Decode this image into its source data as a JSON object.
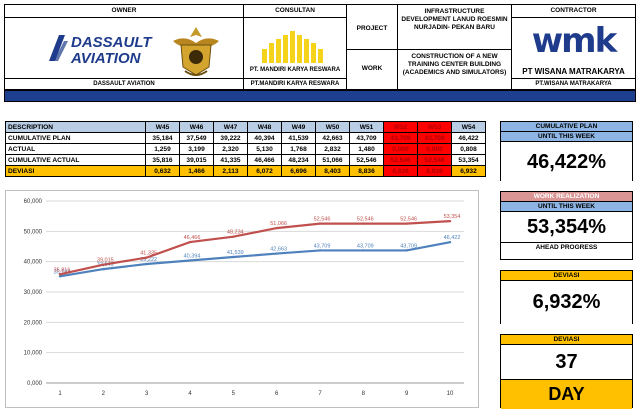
{
  "header": {
    "owner_label": "OWNER",
    "owner_name": "DASSAULT AVIATION",
    "owner_logo_line1": "DASSAULT",
    "owner_logo_line2": "AVIATION",
    "consultant_label": "CONSULTAN",
    "consultant_name": "PT. MANDIRI KARYA RESWARA",
    "consultant_name_footer": "PT.MANDIRI KARYA RESWARA",
    "project_label": "PROJECT",
    "project_value": "INFRASTRUCTURE DEVELOPMENT LANUD ROESMIN NURJADIN- PEKAN BARU",
    "work_label": "WORK",
    "work_value": "CONSTRUCTION OF A NEW TRAINING CENTER BUILDING (ACADEMICS AND SIMULATORS)",
    "contractor_label": "CONTRACTOR",
    "contractor_logo": "wmk",
    "contractor_name": "PT WISANA MATRAKARYA",
    "contractor_name_footer": "PT.WISANA MATRAKARYA"
  },
  "table": {
    "desc_header": "DESCRIPTION",
    "weeks": [
      "W45",
      "W46",
      "W47",
      "W48",
      "W49",
      "W50",
      "W51",
      "W52",
      "W53",
      "W54"
    ],
    "highlight_weeks": [
      7,
      8
    ],
    "rows": [
      {
        "label": "CUMULATIVE PLAN",
        "values": [
          "35,184",
          "37,549",
          "39,222",
          "40,394",
          "41,539",
          "42,663",
          "43,709",
          "43,709",
          "43,709",
          "46,422"
        ]
      },
      {
        "label": "ACTUAL",
        "values": [
          "1,259",
          "3,199",
          "2,320",
          "5,130",
          "1,768",
          "2,832",
          "1,480",
          "0,000",
          "0,000",
          "0,808"
        ]
      },
      {
        "label": "CUMULATIVE ACTUAL",
        "values": [
          "35,816",
          "39,015",
          "41,335",
          "46,466",
          "48,234",
          "51,066",
          "52,546",
          "52,546",
          "52,546",
          "53,354"
        ]
      },
      {
        "label": "DEVIASI",
        "values": [
          "0,632",
          "1,466",
          "2,113",
          "6,072",
          "6,696",
          "8,403",
          "8,836",
          "8,836",
          "8,836",
          "6,932"
        ]
      }
    ]
  },
  "chart_data": {
    "type": "line",
    "x": [
      1,
      2,
      3,
      4,
      5,
      6,
      7,
      8,
      9,
      10
    ],
    "ylim": [
      0,
      60
    ],
    "y_ticks": [
      "0,000",
      "10,000",
      "20,000",
      "30,000",
      "40,000",
      "50,000",
      "60,000"
    ],
    "series": [
      {
        "values": [
          35.184,
          37.549,
          39.222,
          40.394,
          41.539,
          42.663,
          43.709,
          43.709,
          43.709,
          46.422
        ],
        "labels": [
          "35,184",
          "37,549",
          "39,222",
          "40,394",
          "41,539",
          "42,663",
          "43,709",
          "43,709",
          "43,709",
          "46,422"
        ],
        "color": "#4f81bd"
      },
      {
        "values": [
          35.816,
          39.015,
          41.335,
          46.466,
          48.234,
          51.066,
          52.546,
          52.546,
          52.546,
          53.354
        ],
        "labels": [
          "35,816",
          "39,015",
          "41,335",
          "46,466",
          "48,234",
          "51,066",
          "52,546",
          "52,546",
          "52,546",
          "53,354"
        ],
        "color": "#c0504d"
      }
    ]
  },
  "cards": {
    "plan_title": "CUMULATIVE PLAN",
    "plan_subtitle": "UNTIL THIS WEEK",
    "plan_value": "46,422%",
    "real_title": "WORK REALIZATION",
    "real_subtitle": "UNTIL THIS WEEK",
    "real_value": "53,354%",
    "real_status": "AHEAD PROGRESS",
    "dev_title": "DEVIASI",
    "dev_value": "6,932%",
    "day_title": "DEVIASI",
    "day_value": "37",
    "day_unit": "DAY"
  },
  "colors": {
    "header_bar": "#1e3f8f",
    "table_header": "#b9cde5",
    "deviasi_row": "#ffc000",
    "highlight": "#ff0000",
    "card_blue": "#8db4e2",
    "card_rose": "#d99694",
    "card_amber": "#ffc000",
    "consultant_logo": "#f5d31b",
    "contractor_logo": "#1f3c8c"
  }
}
